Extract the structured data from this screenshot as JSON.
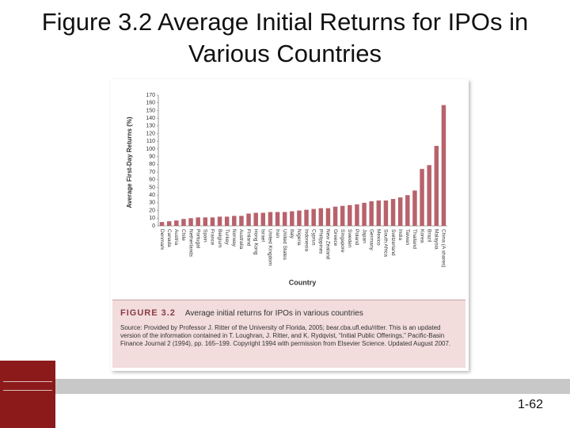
{
  "title": "Figure 3.2 Average Initial Returns for IPOs in Various Countries",
  "chart_data": {
    "type": "bar",
    "ylabel": "Average First-Day Returns (%)",
    "xlabel": "Country",
    "categories": [
      "Denmark",
      "Canada",
      "Austria",
      "Chile",
      "Netherlands",
      "Portugal",
      "Spain",
      "France",
      "Belgium",
      "Turkey",
      "Norway",
      "Australia",
      "Finland",
      "Hong Kong",
      "Israel",
      "United Kingdom",
      "Iran",
      "United States",
      "Italy",
      "Nigeria",
      "Indonesia",
      "Cyprus",
      "Philippines",
      "New Zealand",
      "Greece",
      "Singapore",
      "Sweden",
      "Poland",
      "Japan",
      "Germany",
      "Mexico",
      "South Africa",
      "Switzerland",
      "India",
      "Taiwan",
      "Thailand",
      "Korea",
      "Brazil",
      "Malaysia",
      "China (A shares)"
    ],
    "values": [
      5,
      6,
      7,
      9,
      10,
      11,
      11,
      11,
      12,
      12,
      13,
      13,
      16,
      17,
      17,
      18,
      18,
      18,
      19,
      20,
      21,
      22,
      23,
      23,
      25,
      26,
      27,
      28,
      30,
      32,
      33,
      33,
      35,
      37,
      40,
      46,
      74,
      79,
      104,
      157
    ],
    "color": "#b8626c",
    "ylim": [
      0,
      170
    ],
    "yticks": [
      0,
      10,
      20,
      30,
      40,
      50,
      60,
      70,
      80,
      90,
      100,
      110,
      120,
      130,
      140,
      150,
      160,
      170
    ],
    "grid": false
  },
  "caption": {
    "label": "FIGURE 3.2",
    "title": "Average initial returns for IPOs in various countries",
    "source": "Source: Provided by Professor J. Ritter of the University of Florida, 2005; bear.cba.ufl.edu/ritter. This is an updated version of the information contained in T. Loughran, J. Ritter, and K. Rydqvist, “Initial Public Offerings,” Pacific-Basin Finance Journal 2 (1994), pp. 165–199. Copyright 1994 with permission from Elsevier Science. Updated August 2007."
  },
  "slide_number": "1-62"
}
